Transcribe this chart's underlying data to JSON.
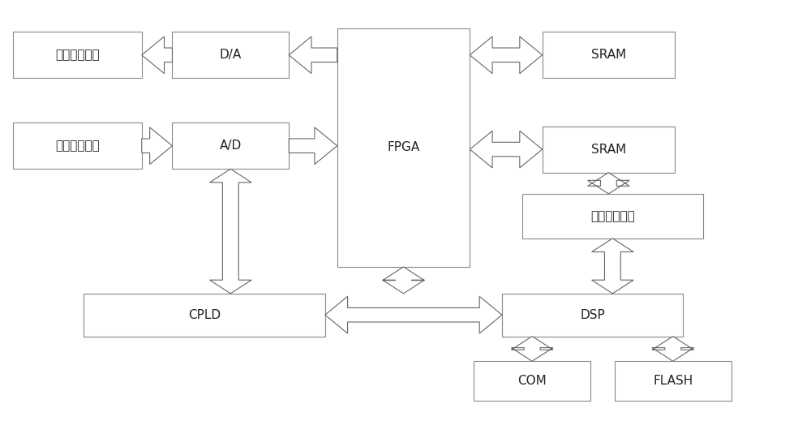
{
  "bg_color": "#ffffff",
  "box_edge_color": "#888888",
  "text_color": "#222222",
  "arrow_color": "#666666",
  "arrow_face": "#ffffff",
  "figsize": [
    10.0,
    5.35
  ],
  "dpi": 100,
  "font_size": 11,
  "boxes": {
    "vo1": [
      0.012,
      0.81,
      0.16,
      0.13
    ],
    "da": [
      0.21,
      0.81,
      0.145,
      0.13
    ],
    "vo2": [
      0.012,
      0.555,
      0.16,
      0.13
    ],
    "ad": [
      0.21,
      0.555,
      0.145,
      0.13
    ],
    "fpga": [
      0.415,
      0.28,
      0.165,
      0.67
    ],
    "sram1": [
      0.67,
      0.81,
      0.165,
      0.13
    ],
    "sram2": [
      0.67,
      0.545,
      0.165,
      0.13
    ],
    "tristate": [
      0.645,
      0.36,
      0.225,
      0.125
    ],
    "cpld": [
      0.1,
      0.085,
      0.3,
      0.12
    ],
    "dsp": [
      0.62,
      0.085,
      0.225,
      0.12
    ],
    "com": [
      0.585,
      -0.095,
      0.145,
      0.11
    ],
    "flash": [
      0.76,
      -0.095,
      0.145,
      0.11
    ]
  },
  "labels": {
    "vo1": "视频信号输出",
    "da": "D/A",
    "vo2": "视频信号输出",
    "ad": "A/D",
    "fpga": "FPGA",
    "sram1": "SRAM",
    "sram2": "SRAM",
    "tristate": "三态门控制器",
    "cpld": "CPLD",
    "dsp": "DSP",
    "com": "COM",
    "flash": "FLASH"
  }
}
